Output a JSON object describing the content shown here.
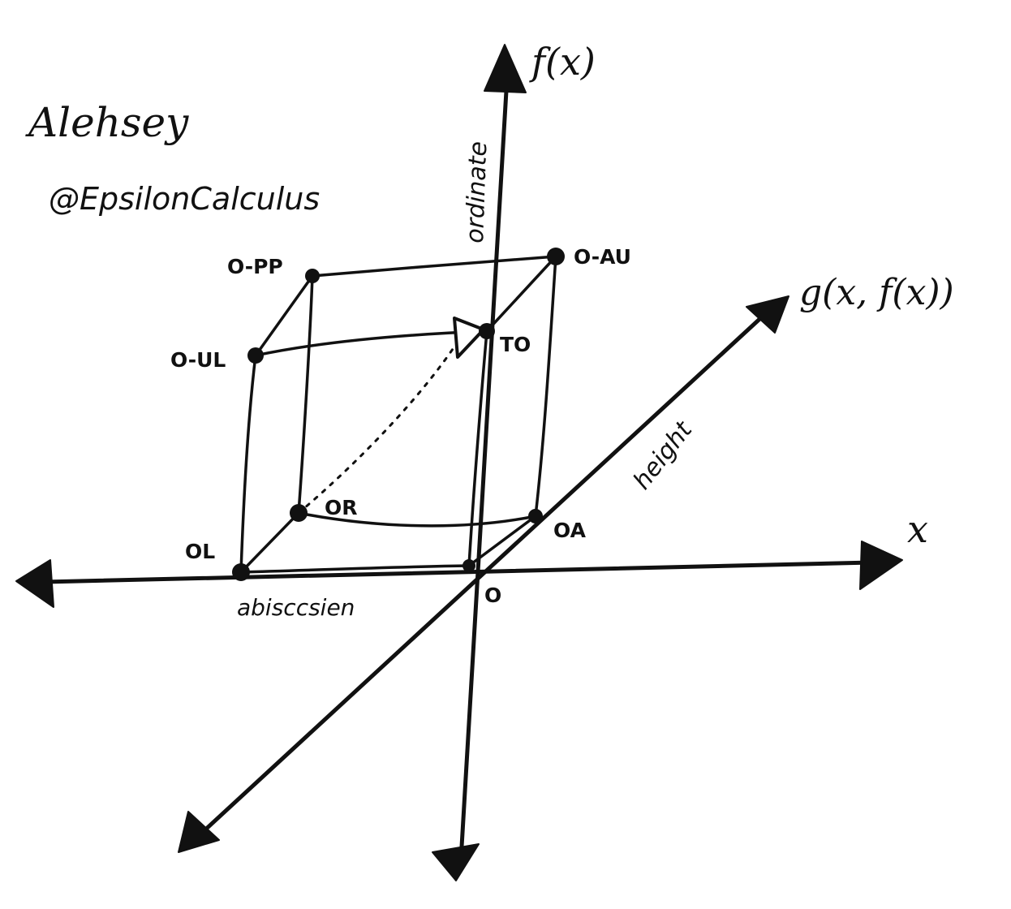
{
  "signature": {
    "author": "Alehsey",
    "handle": "@EpsilonCalculus"
  },
  "axes": {
    "vertical_label": "f(x)",
    "vertical_name": "ordinate",
    "depth_label": "g(x, f(x))",
    "depth_name": "height",
    "horizontal_label": "x",
    "horizontal_name": "abisccsien"
  },
  "points": {
    "origin": "O",
    "o_pp": "O-PP",
    "o_au": "O-AU",
    "o_ul": "O-UL",
    "to": "TO",
    "or": "OR",
    "oa": "OA",
    "ol": "OL"
  }
}
